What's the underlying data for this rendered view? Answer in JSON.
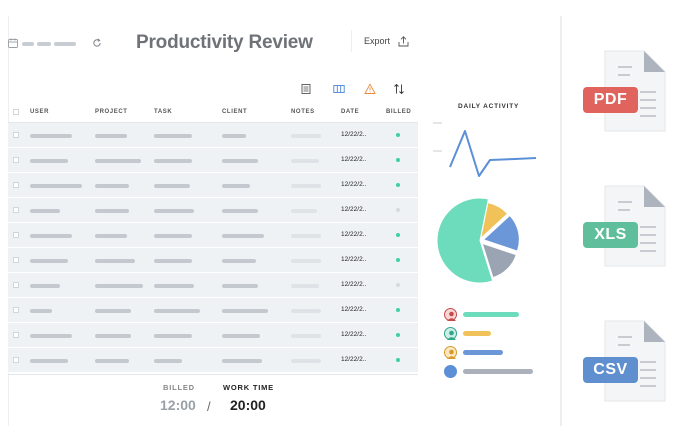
{
  "header": {
    "title": "Productivity Review",
    "export_label": "Export"
  },
  "table": {
    "columns": [
      "USER",
      "PROJECT",
      "TASK",
      "CLIENT",
      "NOTES",
      "DATE",
      "BILLED"
    ],
    "rows": [
      {
        "date": "12/22/2..",
        "billed": true
      },
      {
        "date": "12/22/2..",
        "billed": true
      },
      {
        "date": "12/22/2..",
        "billed": true
      },
      {
        "date": "12/22/2..",
        "billed": false
      },
      {
        "date": "12/22/2..",
        "billed": true
      },
      {
        "date": "12/22/2..",
        "billed": true
      },
      {
        "date": "12/22/2..",
        "billed": false
      },
      {
        "date": "12/22/2..",
        "billed": true
      },
      {
        "date": "12/22/2..",
        "billed": true
      },
      {
        "date": "12/22/2..",
        "billed": true
      }
    ]
  },
  "totals": {
    "billed_label": "BILLED",
    "billed_value": "12:00",
    "separator": "/",
    "work_time_label": "WORK TIME",
    "work_time_value": "20:00"
  },
  "daily_activity": {
    "title": "DAILY ACTIVITY"
  },
  "pie": {
    "slices": [
      {
        "color": "#6ddcbd",
        "value": 0.58
      },
      {
        "color": "#f2c25a",
        "value": 0.1
      },
      {
        "color": "#6b96d8",
        "value": 0.17
      },
      {
        "color": "#9aa4b3",
        "value": 0.15
      }
    ]
  },
  "legend": [
    {
      "color": "#6ddcbd",
      "avatar": "avatar-red"
    },
    {
      "color": "#f2c25a",
      "avatar": "avatar-teal"
    },
    {
      "color": "#6b96d8",
      "avatar": "avatar-yellow"
    },
    {
      "color": "#aab1bb",
      "avatar": "avatar-blue"
    }
  ],
  "files": [
    {
      "label": "PDF",
      "color": "#e0635e"
    },
    {
      "label": "XLS",
      "color": "#5fbf9c"
    },
    {
      "label": "CSV",
      "color": "#5f8fcf"
    }
  ],
  "colors": {
    "billed_dot": "#3fd0a5",
    "unbilled_dot": "#d5dadf",
    "line_chart": "#5b8fd6",
    "billed_value_color": "#9aa0a6",
    "work_time_value_color": "#222222"
  }
}
